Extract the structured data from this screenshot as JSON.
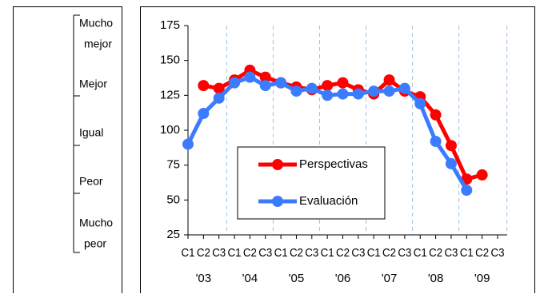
{
  "scale": {
    "labels": [
      {
        "line1": "Mucho",
        "line2": "mejor"
      },
      {
        "line1": "Mejor",
        "line2": ""
      },
      {
        "line1": "Igual",
        "line2": ""
      },
      {
        "line1": "Peor",
        "line2": ""
      },
      {
        "line1": "Mucho",
        "line2": "peor"
      }
    ]
  },
  "chart_data": {
    "type": "line",
    "title": "",
    "xlabel": "",
    "ylabel": "",
    "ylim": [
      25,
      175
    ],
    "yticks": [
      25,
      50,
      75,
      100,
      125,
      150,
      175
    ],
    "grid": "vertical-dashed",
    "quarter_labels": [
      "C1",
      "C2",
      "C3",
      "C1",
      "C2",
      "C3",
      "C1",
      "C2",
      "C3",
      "C1",
      "C2",
      "C3",
      "C1",
      "C2",
      "C3",
      "C1",
      "C2",
      "C3",
      "C1",
      "C2",
      "C3"
    ],
    "year_labels": [
      "'03",
      "'04",
      "'05",
      "'06",
      "'07",
      "'08",
      "'09"
    ],
    "legend_position": "center-left",
    "series": [
      {
        "name": "Perspectivas",
        "color": "#ff0000",
        "values": [
          null,
          132,
          130,
          136,
          143,
          138,
          134,
          131,
          129,
          132,
          134,
          129,
          126,
          136,
          128,
          124,
          111,
          89,
          65,
          68,
          null
        ]
      },
      {
        "name": "Evaluación",
        "color": "#3b7cff",
        "values": [
          90,
          112,
          123,
          134,
          138,
          132,
          134,
          128,
          130,
          125,
          126,
          126,
          128,
          128,
          130,
          119,
          92,
          76,
          57,
          null,
          null
        ]
      }
    ]
  }
}
